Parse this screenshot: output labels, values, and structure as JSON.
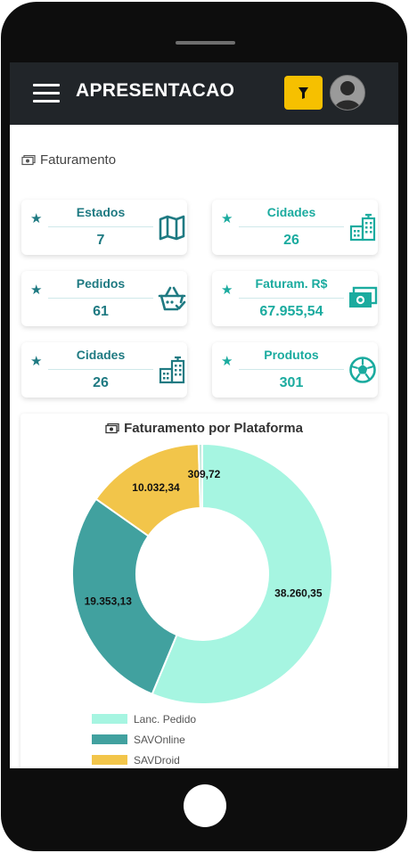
{
  "app": {
    "title": "APRESENTACAO"
  },
  "section": {
    "title": "Faturamento"
  },
  "cards": [
    {
      "label": "Estados",
      "value": "7",
      "icon": "map-icon",
      "tone": "dark"
    },
    {
      "label": "Cidades",
      "value": "26",
      "icon": "buildings-icon",
      "tone": "light"
    },
    {
      "label": "Pedidos",
      "value": "61",
      "icon": "shopping-basket-icon",
      "tone": "dark"
    },
    {
      "label": "Faturam. R$",
      "value": "67.955,54",
      "icon": "money-bill-icon",
      "tone": "light"
    },
    {
      "label": "Cidades",
      "value": "26",
      "icon": "buildings-icon",
      "tone": "dark"
    },
    {
      "label": "Produtos",
      "value": "301",
      "icon": "soccer-ball-icon",
      "tone": "light"
    }
  ],
  "colors": {
    "dark_teal": "#1f7a82",
    "light_teal": "#1bab9f",
    "filter": "#f6c000",
    "topbar": "#212529"
  },
  "chart_data": {
    "type": "pie",
    "title": "Faturamento por Plataforma",
    "donut": true,
    "series": [
      {
        "name": "Lanc. Pedido",
        "value": 38260.35,
        "label": "38.260,35",
        "color": "#a6f5e1"
      },
      {
        "name": "SAVOnline",
        "value": 19353.13,
        "label": "19.353,13",
        "color": "#41a19f"
      },
      {
        "name": "SAVDroid",
        "value": 10032.34,
        "label": "10.032,34",
        "color": "#f2c54a"
      },
      {
        "name": "",
        "value": 309.72,
        "label": "309,72",
        "color": "#c2e8dd"
      }
    ],
    "legend": "bottom-left"
  }
}
